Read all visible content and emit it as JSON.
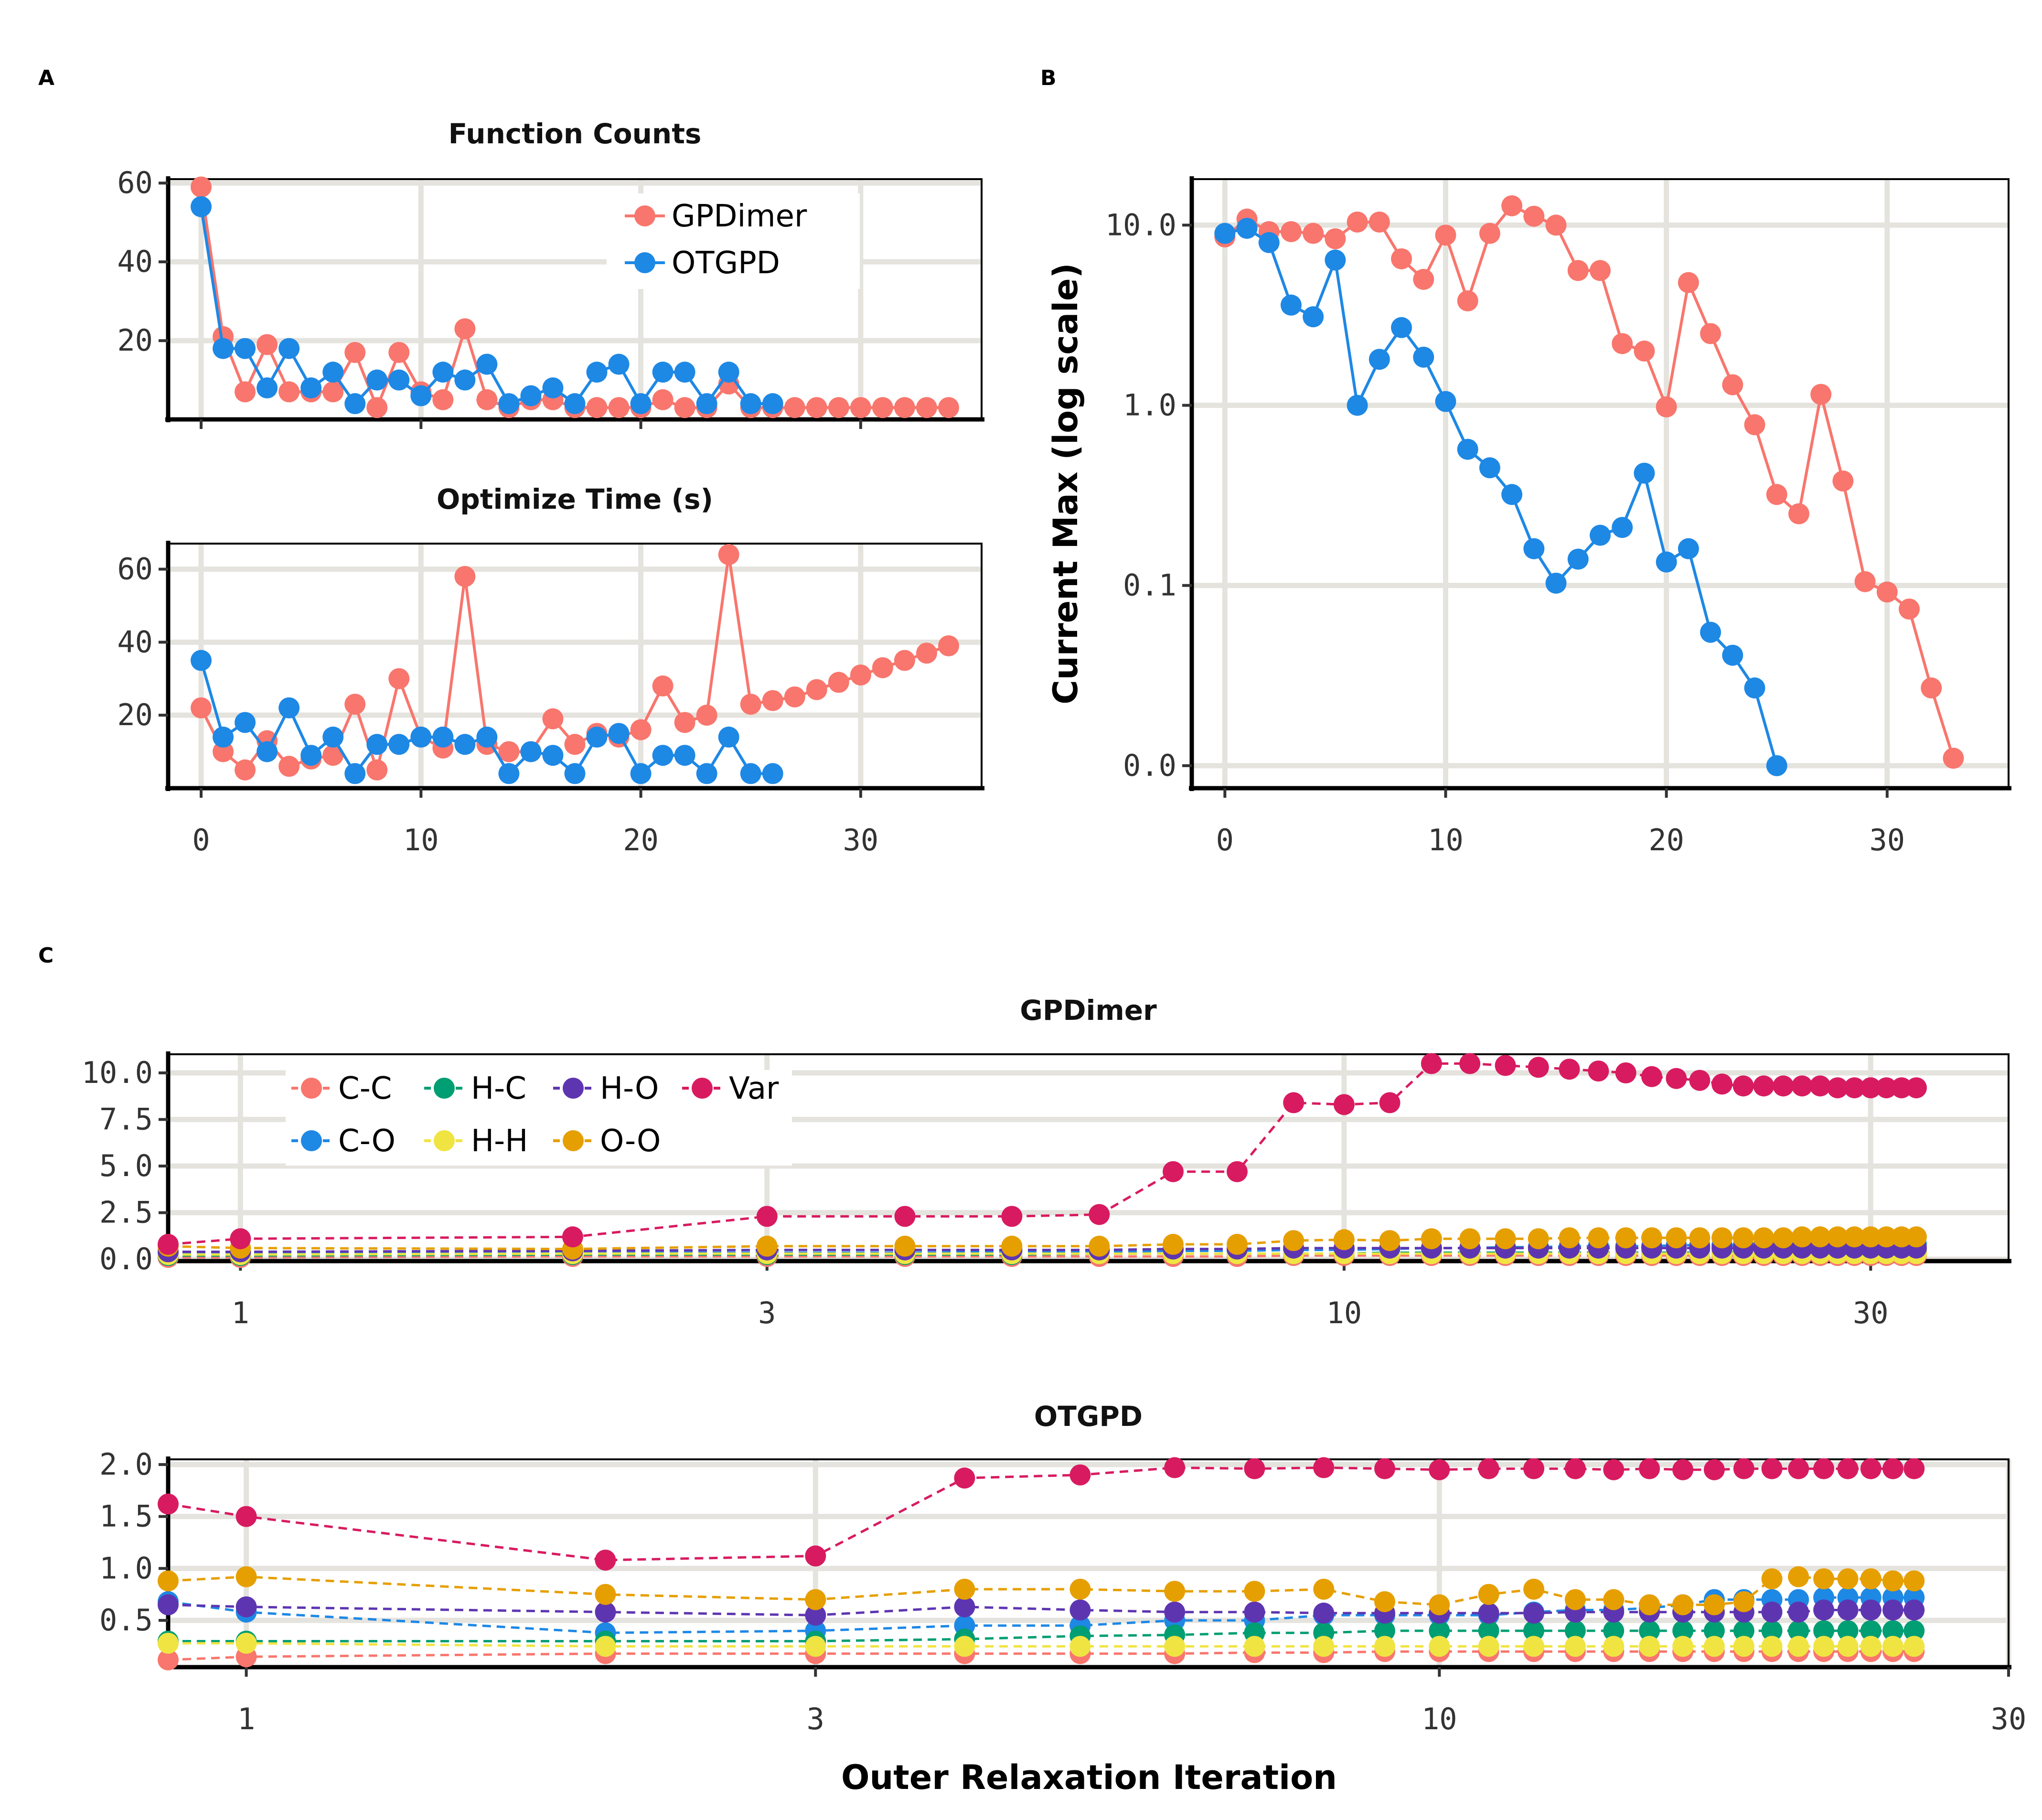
{
  "panels": {
    "a": "A",
    "b": "B",
    "c": "C"
  },
  "colors": {
    "GPDimer": "#F8766D",
    "OTGPD": "#1E88E5",
    "C-C": "#F8766D",
    "C-O": "#1E88E5",
    "H-C": "#009E73",
    "H-H": "#F0E442",
    "H-O": "#5E35B1",
    "O-O": "#E69F00",
    "Var": "#D81B60",
    "grid": "#E5E3DE"
  },
  "xlabel_bottom": "Outer Relaxation Iteration",
  "chart_data": [
    {
      "id": "function_counts",
      "type": "line",
      "title": "Function Counts",
      "xlabel": "",
      "ylabel": "",
      "xlim": [
        -1.5,
        35.5
      ],
      "ylim": [
        0,
        61
      ],
      "xticks": [
        0,
        10,
        20,
        30
      ],
      "xtick_labels": [
        "0",
        "10",
        "20",
        "30"
      ],
      "show_xtick_labels": false,
      "yticks": [
        20,
        40,
        60
      ],
      "ytick_labels": [
        "20",
        "40",
        "60"
      ],
      "legend_position": "top-right",
      "series": [
        {
          "name": "GPDimer",
          "color_key": "GPDimer",
          "x": [
            0,
            1,
            2,
            3,
            4,
            5,
            6,
            7,
            8,
            9,
            10,
            11,
            12,
            13,
            14,
            15,
            16,
            17,
            18,
            19,
            20,
            21,
            22,
            23,
            24,
            25,
            26,
            27,
            28,
            29,
            30,
            31,
            32,
            33,
            34
          ],
          "y": [
            59,
            21,
            7,
            19,
            7,
            7,
            7,
            17,
            3,
            17,
            7,
            5,
            23,
            5,
            3,
            5,
            5,
            3,
            3,
            3,
            3,
            5,
            3,
            3,
            9,
            3,
            3,
            3,
            3,
            3,
            3,
            3,
            3,
            3,
            3
          ]
        },
        {
          "name": "OTGPD",
          "color_key": "OTGPD",
          "x": [
            0,
            1,
            2,
            3,
            4,
            5,
            6,
            7,
            8,
            9,
            10,
            11,
            12,
            13,
            14,
            15,
            16,
            17,
            18,
            19,
            20,
            21,
            22,
            23,
            24,
            25,
            26
          ],
          "y": [
            54,
            18,
            18,
            8,
            18,
            8,
            12,
            4,
            10,
            10,
            6,
            12,
            10,
            14,
            4,
            6,
            8,
            4,
            12,
            14,
            4,
            12,
            12,
            4,
            12,
            4,
            4
          ]
        }
      ]
    },
    {
      "id": "optimize_time",
      "type": "line",
      "title": "Optimize Time (s)",
      "xlabel": "",
      "ylabel": "",
      "xlim": [
        -1.5,
        35.5
      ],
      "ylim": [
        0,
        67
      ],
      "xticks": [
        0,
        10,
        20,
        30
      ],
      "xtick_labels": [
        "0",
        "10",
        "20",
        "30"
      ],
      "show_xtick_labels": true,
      "yticks": [
        20,
        40,
        60
      ],
      "ytick_labels": [
        "20",
        "40",
        "60"
      ],
      "series": [
        {
          "name": "GPDimer",
          "color_key": "GPDimer",
          "x": [
            0,
            1,
            2,
            3,
            4,
            5,
            6,
            7,
            8,
            9,
            10,
            11,
            12,
            13,
            14,
            15,
            16,
            17,
            18,
            19,
            20,
            21,
            22,
            23,
            24,
            25,
            26,
            27,
            28,
            29,
            30,
            31,
            32,
            33,
            34
          ],
          "y": [
            22,
            10,
            5,
            13,
            6,
            8,
            9,
            23,
            5,
            30,
            14,
            11,
            58,
            12,
            10,
            10,
            19,
            12,
            15,
            14,
            16,
            28,
            18,
            20,
            64,
            23,
            24,
            25,
            27,
            29,
            31,
            33,
            35,
            37,
            39
          ]
        },
        {
          "name": "OTGPD",
          "color_key": "OTGPD",
          "x": [
            0,
            1,
            2,
            3,
            4,
            5,
            6,
            7,
            8,
            9,
            10,
            11,
            12,
            13,
            14,
            15,
            16,
            17,
            18,
            19,
            20,
            21,
            22,
            23,
            24,
            25,
            26
          ],
          "y": [
            35,
            14,
            18,
            10,
            22,
            9,
            14,
            4,
            12,
            12,
            14,
            14,
            12,
            14,
            4,
            10,
            9,
            4,
            14,
            15,
            4,
            9,
            9,
            4,
            14,
            4,
            4
          ]
        }
      ]
    },
    {
      "id": "current_max",
      "type": "line",
      "title": "",
      "xlabel": "",
      "ylabel": "Current Max (log scale)",
      "yscale": "log",
      "xlim": [
        -1.5,
        35.5
      ],
      "ylim": [
        0.0075,
        18
      ],
      "xticks": [
        0,
        10,
        20,
        30
      ],
      "xtick_labels": [
        "0",
        "10",
        "20",
        "30"
      ],
      "yticks": [
        0.01,
        0.1,
        1,
        10
      ],
      "ytick_labels": [
        "0.0",
        "0.1",
        "1.0",
        "10.0"
      ],
      "series": [
        {
          "name": "GPDimer",
          "color_key": "GPDimer",
          "x": [
            0,
            1,
            2,
            3,
            4,
            5,
            6,
            7,
            8,
            9,
            10,
            11,
            12,
            13,
            14,
            15,
            16,
            17,
            18,
            19,
            20,
            21,
            22,
            23,
            24,
            25,
            26,
            27,
            28,
            29,
            30,
            31,
            32,
            33
          ],
          "y": [
            8.6,
            10.8,
            9.2,
            9.2,
            9.0,
            8.4,
            10.4,
            10.4,
            6.5,
            5.0,
            8.8,
            3.8,
            9.0,
            12.8,
            11.2,
            10.0,
            5.6,
            5.6,
            2.2,
            2.0,
            0.98,
            4.8,
            2.5,
            1.3,
            0.78,
            0.32,
            0.25,
            1.15,
            0.38,
            0.105,
            0.092,
            0.074,
            0.027,
            0.011
          ]
        },
        {
          "name": "OTGPD",
          "color_key": "OTGPD",
          "x": [
            0,
            1,
            2,
            3,
            4,
            5,
            6,
            7,
            8,
            9,
            10,
            11,
            12,
            13,
            14,
            15,
            16,
            17,
            18,
            19,
            20,
            21,
            22,
            23,
            24,
            25
          ],
          "y": [
            9.0,
            9.6,
            8.0,
            3.6,
            3.1,
            6.4,
            1.0,
            1.8,
            2.7,
            1.85,
            1.05,
            0.57,
            0.45,
            0.32,
            0.16,
            0.103,
            0.14,
            0.19,
            0.21,
            0.42,
            0.135,
            0.16,
            0.055,
            0.041,
            0.027,
            0.01
          ]
        }
      ]
    },
    {
      "id": "gpdimer_hyperparams",
      "type": "line",
      "title": "GPDimer",
      "xlabel": "",
      "ylabel": "",
      "xscale": "log",
      "xlim": [
        0.86,
        40
      ],
      "ylim": [
        -0.1,
        11
      ],
      "xticks": [
        1,
        3,
        10,
        30
      ],
      "xtick_labels": [
        "1",
        "3",
        "10",
        "30"
      ],
      "yticks": [
        0,
        2.5,
        5,
        7.5,
        10
      ],
      "ytick_labels": [
        "0.0",
        "2.5",
        "5.0",
        "7.5",
        "10.0"
      ],
      "legend_position": "top-left",
      "legend_entries": [
        "C-C",
        "H-C",
        "H-O",
        "Var",
        "C-O",
        "H-H",
        "O-O"
      ],
      "x": [
        0.86,
        1,
        2,
        3,
        4,
        5,
        6,
        7,
        8,
        9,
        10,
        11,
        12,
        13,
        14,
        15,
        16,
        17,
        18,
        19,
        20,
        21,
        22,
        23,
        24,
        25,
        26,
        27,
        28,
        29,
        30,
        31,
        32,
        33
      ],
      "series": [
        {
          "name": "C-C",
          "color_key": "C-C",
          "y": [
            0.1,
            0.1,
            0.15,
            0.15,
            0.15,
            0.15,
            0.15,
            0.15,
            0.15,
            0.2,
            0.2,
            0.2,
            0.2,
            0.2,
            0.2,
            0.2,
            0.2,
            0.2,
            0.2,
            0.2,
            0.2,
            0.2,
            0.2,
            0.2,
            0.2,
            0.2,
            0.2,
            0.2,
            0.2,
            0.2,
            0.2,
            0.2,
            0.2,
            0.2
          ]
        },
        {
          "name": "C-O",
          "color_key": "C-O",
          "y": [
            0.3,
            0.3,
            0.35,
            0.35,
            0.35,
            0.4,
            0.4,
            0.45,
            0.45,
            0.5,
            0.5,
            0.55,
            0.6,
            0.6,
            0.65,
            0.65,
            0.7,
            0.7,
            0.7,
            0.7,
            0.75,
            0.75,
            0.75,
            0.75,
            0.75,
            0.8,
            0.8,
            0.8,
            0.8,
            0.8,
            0.8,
            0.8,
            0.8,
            0.8
          ]
        },
        {
          "name": "H-C",
          "color_key": "H-C",
          "y": [
            0.2,
            0.2,
            0.25,
            0.25,
            0.25,
            0.25,
            0.3,
            0.3,
            0.3,
            0.3,
            0.3,
            0.35,
            0.35,
            0.35,
            0.35,
            0.35,
            0.35,
            0.35,
            0.35,
            0.35,
            0.35,
            0.35,
            0.35,
            0.35,
            0.35,
            0.35,
            0.35,
            0.35,
            0.35,
            0.35,
            0.35,
            0.35,
            0.35,
            0.35
          ]
        },
        {
          "name": "H-H",
          "color_key": "H-H",
          "y": [
            0.25,
            0.25,
            0.3,
            0.3,
            0.3,
            0.3,
            0.3,
            0.3,
            0.3,
            0.3,
            0.3,
            0.3,
            0.3,
            0.3,
            0.3,
            0.3,
            0.3,
            0.3,
            0.3,
            0.3,
            0.3,
            0.3,
            0.3,
            0.3,
            0.3,
            0.3,
            0.3,
            0.3,
            0.3,
            0.3,
            0.3,
            0.3,
            0.3,
            0.3
          ]
        },
        {
          "name": "H-O",
          "color_key": "H-O",
          "y": [
            0.4,
            0.4,
            0.45,
            0.5,
            0.5,
            0.5,
            0.5,
            0.55,
            0.55,
            0.6,
            0.6,
            0.6,
            0.6,
            0.6,
            0.6,
            0.6,
            0.6,
            0.6,
            0.6,
            0.6,
            0.6,
            0.6,
            0.6,
            0.6,
            0.6,
            0.6,
            0.6,
            0.6,
            0.6,
            0.6,
            0.6,
            0.6,
            0.6,
            0.6
          ]
        },
        {
          "name": "O-O",
          "color_key": "O-O",
          "y": [
            0.7,
            0.6,
            0.55,
            0.7,
            0.7,
            0.7,
            0.7,
            0.8,
            0.8,
            1.0,
            1.05,
            1.0,
            1.1,
            1.1,
            1.1,
            1.1,
            1.15,
            1.15,
            1.15,
            1.15,
            1.15,
            1.15,
            1.15,
            1.15,
            1.15,
            1.15,
            1.2,
            1.2,
            1.2,
            1.2,
            1.2,
            1.2,
            1.2,
            1.2
          ]
        },
        {
          "name": "Var",
          "color_key": "Var",
          "y": [
            0.8,
            1.1,
            1.2,
            2.3,
            2.3,
            2.3,
            2.4,
            4.7,
            4.7,
            8.4,
            8.3,
            8.4,
            10.5,
            10.5,
            10.4,
            10.3,
            10.2,
            10.1,
            10.0,
            9.8,
            9.7,
            9.6,
            9.4,
            9.3,
            9.3,
            9.3,
            9.3,
            9.3,
            9.2,
            9.2,
            9.2,
            9.2,
            9.2,
            9.2
          ]
        }
      ]
    },
    {
      "id": "otgpd_hyperparams",
      "type": "line",
      "title": "OTGPD",
      "xlabel": "Outer Relaxation Iteration",
      "ylabel": "",
      "xscale": "log",
      "xlim": [
        0.86,
        30
      ],
      "ylim": [
        0.05,
        2.05
      ],
      "xticks": [
        1,
        3,
        10,
        30
      ],
      "xtick_labels": [
        "1",
        "3",
        "10",
        "30"
      ],
      "yticks": [
        0.5,
        1,
        1.5,
        2
      ],
      "ytick_labels": [
        "0.5",
        "1.0",
        "1.5",
        "2.0"
      ],
      "x": [
        0.86,
        1,
        2,
        3,
        4,
        5,
        6,
        7,
        8,
        9,
        10,
        11,
        12,
        13,
        14,
        15,
        16,
        17,
        18,
        19,
        20,
        21,
        22,
        23,
        24,
        25
      ],
      "series": [
        {
          "name": "C-C",
          "color_key": "C-C",
          "y": [
            0.12,
            0.15,
            0.18,
            0.18,
            0.18,
            0.18,
            0.18,
            0.19,
            0.19,
            0.2,
            0.2,
            0.2,
            0.2,
            0.2,
            0.2,
            0.2,
            0.2,
            0.2,
            0.2,
            0.2,
            0.2,
            0.2,
            0.2,
            0.2,
            0.2,
            0.2
          ]
        },
        {
          "name": "C-O",
          "color_key": "C-O",
          "y": [
            0.68,
            0.58,
            0.38,
            0.4,
            0.45,
            0.45,
            0.5,
            0.5,
            0.55,
            0.55,
            0.55,
            0.55,
            0.58,
            0.6,
            0.6,
            0.62,
            0.65,
            0.7,
            0.7,
            0.7,
            0.7,
            0.72,
            0.72,
            0.72,
            0.72,
            0.72
          ]
        },
        {
          "name": "H-C",
          "color_key": "H-C",
          "y": [
            0.3,
            0.3,
            0.3,
            0.3,
            0.32,
            0.35,
            0.36,
            0.38,
            0.38,
            0.4,
            0.4,
            0.4,
            0.4,
            0.4,
            0.4,
            0.4,
            0.4,
            0.4,
            0.4,
            0.4,
            0.4,
            0.4,
            0.4,
            0.4,
            0.4,
            0.4
          ]
        },
        {
          "name": "H-H",
          "color_key": "H-H",
          "y": [
            0.28,
            0.28,
            0.25,
            0.25,
            0.25,
            0.25,
            0.25,
            0.25,
            0.25,
            0.25,
            0.25,
            0.25,
            0.25,
            0.25,
            0.25,
            0.25,
            0.25,
            0.25,
            0.25,
            0.25,
            0.25,
            0.25,
            0.25,
            0.25,
            0.25,
            0.25
          ]
        },
        {
          "name": "H-O",
          "color_key": "H-O",
          "y": [
            0.65,
            0.63,
            0.58,
            0.55,
            0.63,
            0.6,
            0.58,
            0.58,
            0.57,
            0.57,
            0.57,
            0.57,
            0.57,
            0.58,
            0.58,
            0.58,
            0.58,
            0.58,
            0.58,
            0.58,
            0.58,
            0.6,
            0.6,
            0.6,
            0.6,
            0.6
          ]
        },
        {
          "name": "O-O",
          "color_key": "O-O",
          "y": [
            0.88,
            0.92,
            0.75,
            0.7,
            0.8,
            0.8,
            0.78,
            0.78,
            0.8,
            0.68,
            0.65,
            0.75,
            0.8,
            0.7,
            0.7,
            0.65,
            0.65,
            0.65,
            0.68,
            0.9,
            0.92,
            0.9,
            0.9,
            0.9,
            0.88,
            0.88
          ]
        },
        {
          "name": "Var",
          "color_key": "Var",
          "y": [
            1.62,
            1.5,
            1.08,
            1.12,
            1.87,
            1.9,
            1.97,
            1.96,
            1.97,
            1.96,
            1.95,
            1.96,
            1.96,
            1.96,
            1.95,
            1.96,
            1.95,
            1.95,
            1.96,
            1.96,
            1.96,
            1.96,
            1.96,
            1.96,
            1.96,
            1.96
          ]
        }
      ]
    }
  ]
}
